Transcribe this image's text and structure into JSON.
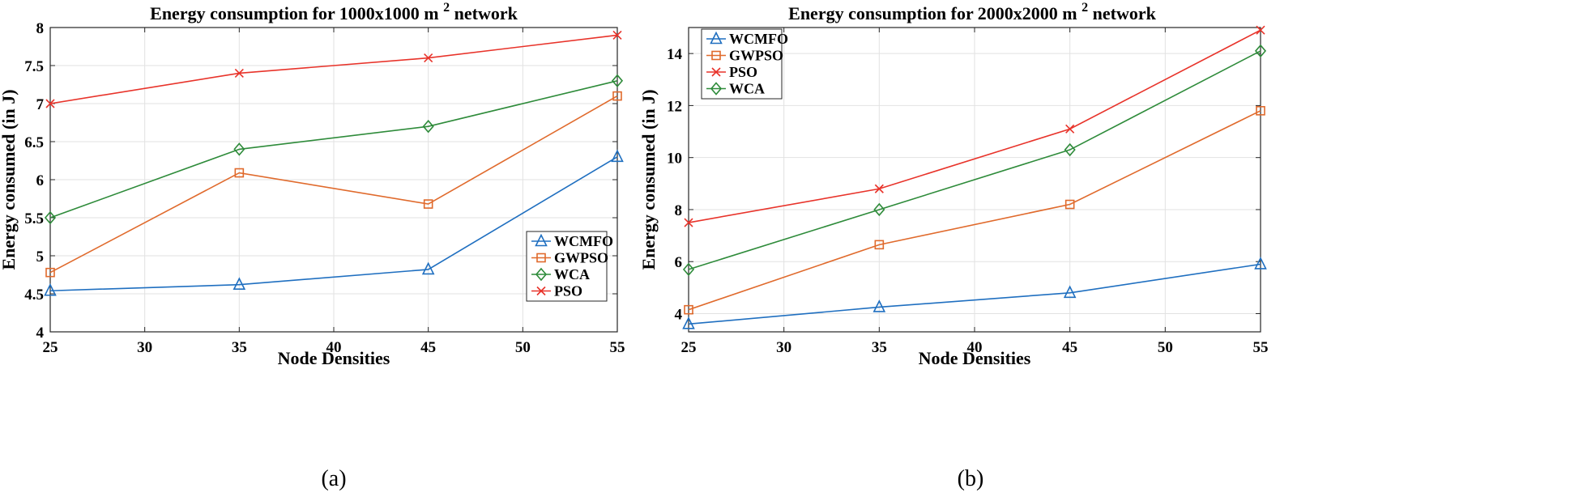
{
  "chart_data": [
    {
      "type": "line",
      "title": "Energy consumption for 1000x1000 m",
      "title_superscript": "2",
      "title_suffix": "network",
      "xlabel": "Node Densities",
      "ylabel": "Energy consumed (in J)",
      "caption": "(a)",
      "x": [
        25,
        35,
        45,
        55
      ],
      "xlim": [
        25,
        55
      ],
      "ylim": [
        4,
        8
      ],
      "xticks": [
        25,
        30,
        35,
        40,
        45,
        50,
        55
      ],
      "yticks": [
        4,
        4.5,
        5,
        5.5,
        6,
        6.5,
        7,
        7.5,
        8
      ],
      "xtick_labels": [
        "25",
        "30",
        "35",
        "40",
        "45",
        "50",
        "55"
      ],
      "ytick_labels": [
        "4",
        "4.5",
        "5",
        "5.5",
        "6",
        "6.5",
        "7",
        "7.5",
        "8"
      ],
      "grid": true,
      "legend_position": "bottom-right",
      "series": [
        {
          "name": "WCMFO",
          "color": "#1f6fc0",
          "marker": "triangle",
          "values": [
            4.54,
            4.62,
            4.82,
            6.3
          ]
        },
        {
          "name": "GWPSO",
          "color": "#e06a2c",
          "marker": "square",
          "values": [
            4.78,
            6.09,
            5.68,
            7.1
          ]
        },
        {
          "name": "WCA",
          "color": "#2e8b3a",
          "marker": "diamond",
          "values": [
            5.5,
            6.4,
            6.7,
            7.3
          ]
        },
        {
          "name": "PSO",
          "color": "#e8332a",
          "marker": "x",
          "values": [
            7.0,
            7.4,
            7.6,
            7.9
          ]
        }
      ]
    },
    {
      "type": "line",
      "title": "Energy consumption for 2000x2000 m",
      "title_superscript": "2",
      "title_suffix": "network",
      "xlabel": "Node Densities",
      "ylabel": "Energy consumed (in J)",
      "caption": "(b)",
      "x": [
        25,
        35,
        45,
        55
      ],
      "xlim": [
        25,
        55
      ],
      "ylim": [
        3.3,
        15
      ],
      "xticks": [
        25,
        30,
        35,
        40,
        45,
        50,
        55
      ],
      "yticks": [
        4,
        6,
        8,
        10,
        12,
        14
      ],
      "xtick_labels": [
        "25",
        "30",
        "35",
        "40",
        "45",
        "50",
        "55"
      ],
      "ytick_labels": [
        "4",
        "6",
        "8",
        "10",
        "12",
        "14"
      ],
      "grid": true,
      "legend_position": "top-left",
      "series": [
        {
          "name": "WCMFO",
          "color": "#1f6fc0",
          "marker": "triangle",
          "values": [
            3.6,
            4.25,
            4.8,
            5.9
          ]
        },
        {
          "name": "GWPSO",
          "color": "#e06a2c",
          "marker": "square",
          "values": [
            4.15,
            6.65,
            8.2,
            11.8
          ]
        },
        {
          "name": "PSO",
          "color": "#e8332a",
          "marker": "x",
          "values": [
            7.5,
            8.8,
            11.1,
            14.9
          ]
        },
        {
          "name": "WCA",
          "color": "#2e8b3a",
          "marker": "diamond",
          "values": [
            5.7,
            8.0,
            10.3,
            14.1
          ]
        }
      ]
    }
  ]
}
